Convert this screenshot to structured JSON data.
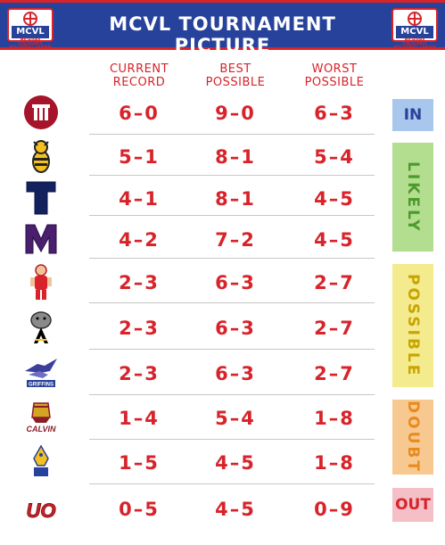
{
  "header": {
    "title": "MCVL TOURNAMENT PICTURE",
    "logo_text": "MCVL",
    "logo_subtext": "MICHIANA COLLEGIATE VOLLEYBALL LEAGUE"
  },
  "columns": {
    "current": [
      "CURRENT",
      "RECORD"
    ],
    "best": [
      "BEST",
      "POSSIBLE"
    ],
    "worst": [
      "WORST",
      "POSSIBLE"
    ]
  },
  "teams": [
    {
      "logo": "trine-logo-icon",
      "current": "6–0",
      "best": "9–0",
      "worst": "6–3"
    },
    {
      "logo": "hornet-logo-icon",
      "current": "5–1",
      "best": "8–1",
      "worst": "5–4"
    },
    {
      "logo": "t-logo-icon",
      "current": "4–1",
      "best": "8–1",
      "worst": "4–5"
    },
    {
      "logo": "m-logo-icon",
      "current": "4–2",
      "best": "7–2",
      "worst": "4–5"
    },
    {
      "logo": "mascot-logo-icon",
      "current": "2–3",
      "best": "6–3",
      "worst": "2–7"
    },
    {
      "logo": "bulldog-logo-icon",
      "current": "2–3",
      "best": "6–3",
      "worst": "2–7"
    },
    {
      "logo": "griffins-logo-icon",
      "current": "2–3",
      "best": "6–3",
      "worst": "2–7"
    },
    {
      "logo": "calvin-logo-icon",
      "current": "1–4",
      "best": "5–4",
      "worst": "1–8"
    },
    {
      "logo": "bird-logo-icon",
      "current": "1–5",
      "best": "4–5",
      "worst": "1–8"
    },
    {
      "logo": "uo-logo-icon",
      "current": "0–5",
      "best": "4–5",
      "worst": "0–9"
    }
  ],
  "team_text": {
    "griffins": "GRIFFINS",
    "calvin": "CALVIN",
    "uo": "UO"
  },
  "statuses": {
    "in": "IN",
    "likely": "LIKELY",
    "possible": "POSSIBLE",
    "doubt": "DOUBT",
    "out": "OUT"
  },
  "colors": {
    "red": "#d8232a",
    "navy": "#27429a",
    "in_bg": "#a9c6ec",
    "likely_bg": "#b3dd8f",
    "possible_bg": "#f4ea8e",
    "doubt_bg": "#f8c891",
    "out_bg": "#f4bfc6"
  }
}
